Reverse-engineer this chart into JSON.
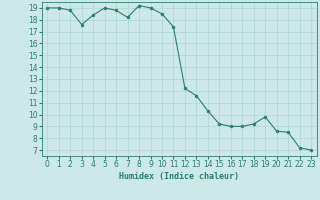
{
  "x": [
    0,
    1,
    2,
    3,
    4,
    5,
    6,
    7,
    8,
    9,
    10,
    11,
    12,
    13,
    14,
    15,
    16,
    17,
    18,
    19,
    20,
    21,
    22,
    23
  ],
  "y": [
    19.0,
    19.0,
    18.8,
    17.6,
    18.4,
    19.0,
    18.8,
    18.2,
    19.2,
    19.0,
    18.5,
    17.4,
    12.2,
    11.6,
    10.3,
    9.2,
    9.0,
    9.0,
    9.2,
    9.8,
    8.6,
    8.5,
    7.2,
    7.0
  ],
  "line_color": "#2e7d72",
  "marker_color": "#2e7d72",
  "bg_color": "#cce8e8",
  "grid_color": "#afd4d4",
  "xlabel": "Humidex (Indice chaleur)",
  "xlim": [
    -0.5,
    23.5
  ],
  "ylim": [
    6.5,
    19.5
  ],
  "yticks": [
    7,
    8,
    9,
    10,
    11,
    12,
    13,
    14,
    15,
    16,
    17,
    18,
    19
  ],
  "xticks": [
    0,
    1,
    2,
    3,
    4,
    5,
    6,
    7,
    8,
    9,
    10,
    11,
    12,
    13,
    14,
    15,
    16,
    17,
    18,
    19,
    20,
    21,
    22,
    23
  ],
  "font_color": "#2e7d72",
  "label_fontsize": 6.0,
  "tick_fontsize": 5.5
}
